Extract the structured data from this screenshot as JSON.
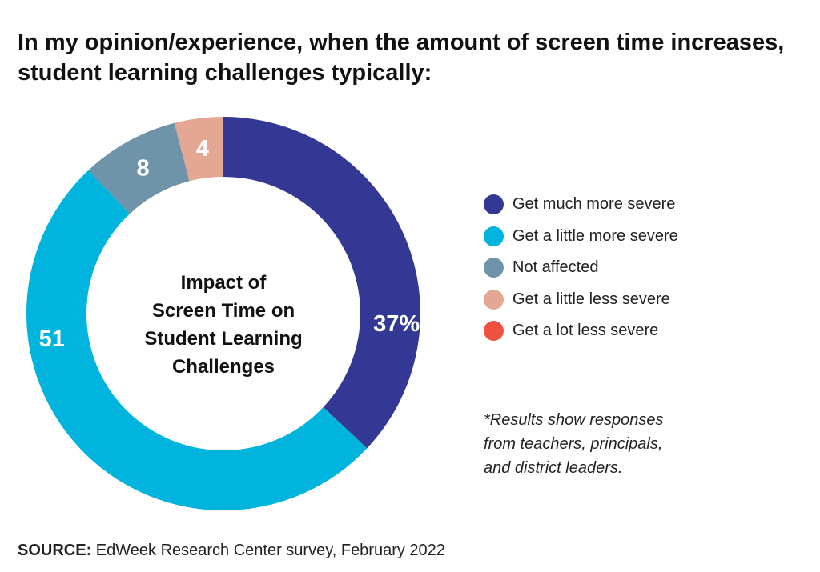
{
  "title": "In my opinion/experience, when the amount of screen time increases, student learning challenges typically:",
  "chart_data": {
    "type": "pie",
    "subtype": "donut",
    "center_label": [
      "Impact of",
      "Screen Time on",
      "Student Learning",
      "Challenges"
    ],
    "categories": [
      "Get much more severe",
      "Get a little more severe",
      "Not affected",
      "Get a little less severe",
      "Get a lot less severe"
    ],
    "values": [
      37,
      51,
      8,
      4,
      0
    ],
    "data_labels": [
      "37%",
      "51",
      "8",
      "4",
      ""
    ],
    "colors": [
      "#333894",
      "#00b4de",
      "#6f93a8",
      "#e4a793",
      "#ef5140"
    ],
    "legend_position": "right"
  },
  "note": [
    "*Results show responses",
    "from teachers, principals,",
    "and district leaders."
  ],
  "source": {
    "label": "SOURCE:",
    "text": " EdWeek Research Center survey, February 2022"
  }
}
